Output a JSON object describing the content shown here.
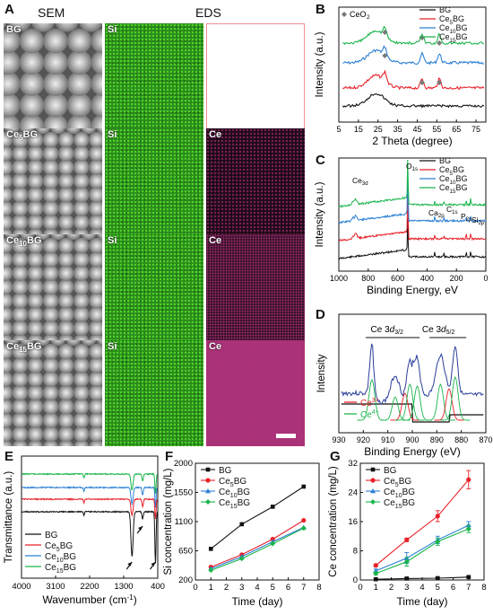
{
  "panel_labels": {
    "A": "A",
    "B": "B",
    "C": "C",
    "D": "D",
    "E": "E",
    "F": "F",
    "G": "G"
  },
  "panelA": {
    "sem_title": "SEM",
    "eds_title": "EDS",
    "rows": [
      {
        "sample": "BG",
        "si": "Si",
        "ce": ""
      },
      {
        "sample": "Ce5BG",
        "si": "Si",
        "ce": "Ce"
      },
      {
        "sample": "Ce10BG",
        "si": "Si",
        "ce": "Ce"
      },
      {
        "sample": "Ce15BG",
        "si": "Si",
        "ce": "Ce"
      }
    ]
  },
  "colors": {
    "BG": "#111111",
    "Ce5BG": "#e8222a",
    "Ce10BG": "#2a7fd4",
    "Ce15BG": "#1ab54c",
    "ce3": "#e8222a",
    "ce4": "#1ab54c"
  },
  "chart_data": [
    {
      "id": "B",
      "type": "line",
      "xlabel": "2 Theta (degree)",
      "ylabel": "Intensity (a.u.)",
      "xlim": [
        5,
        80
      ],
      "xticks": [
        5,
        15,
        25,
        35,
        45,
        55,
        65,
        75
      ],
      "annotation": "CeO₂",
      "series": [
        {
          "name": "BG",
          "offset": 0,
          "peaks": []
        },
        {
          "name": "Ce5BG",
          "offset": 1,
          "peaks": [
            28.5,
            47.5,
            56.3
          ]
        },
        {
          "name": "Ce10BG",
          "offset": 2,
          "peaks": [
            28.5,
            47.5,
            56.3
          ]
        },
        {
          "name": "Ce15BG",
          "offset": 3,
          "peaks": [
            28.5,
            47.5,
            56.3
          ]
        }
      ],
      "diamond_x": [
        28.5,
        33,
        47.5,
        56.3
      ]
    },
    {
      "id": "C",
      "type": "line",
      "xlabel": "Binding Energy, eV",
      "ylabel": "Intensity (a.u.)",
      "xlim": [
        1000,
        0
      ],
      "xticks": [
        1000,
        900,
        800,
        700,
        600,
        500,
        400,
        300,
        200,
        100,
        0
      ],
      "peak_labels": [
        {
          "text": "Ce3d",
          "x": 885
        },
        {
          "text": "O1s",
          "x": 531
        },
        {
          "text": "Ca2p",
          "x": 347
        },
        {
          "text": "C1s",
          "x": 285
        },
        {
          "text": "P2p",
          "x": 133
        },
        {
          "text": "Si2p",
          "x": 103
        }
      ],
      "series": [
        {
          "name": "BG"
        },
        {
          "name": "Ce5BG"
        },
        {
          "name": "Ce10BG"
        },
        {
          "name": "Ce15BG"
        }
      ]
    },
    {
      "id": "D",
      "type": "line",
      "xlabel": "Binding Energy (eV)",
      "ylabel": "Intensity",
      "xlim": [
        930,
        870
      ],
      "xticks": [
        930,
        920,
        910,
        900,
        890,
        880,
        870
      ],
      "annotations": [
        "Ce 3d3/2",
        "Ce 3d5/2"
      ],
      "legend": [
        "Ce3+",
        "Ce4+"
      ]
    },
    {
      "id": "E",
      "type": "line",
      "xlabel": "Wavenumber (cm-1)",
      "ylabel": "Transmittance (a.u.)",
      "xlim": [
        4000,
        400
      ],
      "xticks": [
        4000,
        3100,
        2200,
        1300,
        400
      ],
      "series": [
        {
          "name": "BG"
        },
        {
          "name": "Ce5BG"
        },
        {
          "name": "Ce10BG"
        },
        {
          "name": "Ce15BG"
        }
      ]
    },
    {
      "id": "F",
      "type": "line",
      "xlabel": "Time (day)",
      "ylabel": "Si concentration (mg/L)",
      "xlim": [
        0,
        8
      ],
      "ylim": [
        200,
        2000
      ],
      "xticks": [
        0,
        1,
        2,
        3,
        4,
        5,
        6,
        7,
        8
      ],
      "yticks": [
        200,
        650,
        1100,
        1550,
        2000
      ],
      "x": [
        1,
        3,
        5,
        7
      ],
      "series": [
        {
          "name": "BG",
          "values": [
            680,
            1060,
            1330,
            1640
          ]
        },
        {
          "name": "Ce5BG",
          "values": [
            400,
            590,
            830,
            1120
          ]
        },
        {
          "name": "Ce10BG",
          "values": [
            375,
            560,
            790,
            1010
          ]
        },
        {
          "name": "Ce15BG",
          "values": [
            350,
            530,
            760,
            1000
          ]
        }
      ]
    },
    {
      "id": "G",
      "type": "line",
      "xlabel": "Time (day)",
      "ylabel": "Ce concentration (mg/L)",
      "xlim": [
        0,
        8
      ],
      "ylim": [
        0,
        32
      ],
      "xticks": [
        0,
        1,
        2,
        3,
        4,
        5,
        6,
        7,
        8
      ],
      "yticks": [
        0,
        8,
        16,
        24,
        32
      ],
      "x": [
        1,
        3,
        5,
        7
      ],
      "series": [
        {
          "name": "BG",
          "values": [
            0.2,
            0.4,
            0.5,
            0.8
          ],
          "err": [
            0.2,
            0.2,
            0.2,
            0.2
          ]
        },
        {
          "name": "Ce5BG",
          "values": [
            4,
            11,
            17.5,
            27.5
          ],
          "err": [
            0.3,
            0.5,
            1.5,
            2.5
          ]
        },
        {
          "name": "Ce10BG",
          "values": [
            2.5,
            6,
            11,
            15
          ],
          "err": [
            0.5,
            1.5,
            1.0,
            1.0
          ]
        },
        {
          "name": "Ce15BG",
          "values": [
            1.8,
            5,
            10.5,
            14
          ],
          "err": [
            0.4,
            1.2,
            1.0,
            1.0
          ]
        }
      ]
    }
  ]
}
